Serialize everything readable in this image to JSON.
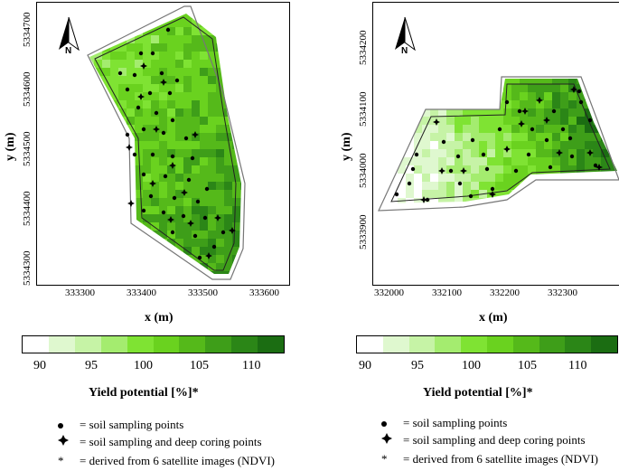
{
  "colors": {
    "scale": [
      "#ffffff",
      "#dff8cf",
      "#c6f3a6",
      "#a4ec6f",
      "#7fe333",
      "#6ad21f",
      "#55b91a",
      "#3e9e19",
      "#2b8617",
      "#1b6d12"
    ],
    "outline": "#777777"
  },
  "north_label": "N",
  "map_left": {
    "x_ticks": [
      "333300",
      "333400",
      "333500",
      "333600"
    ],
    "y_ticks": [
      "5334300",
      "5334400",
      "5334500",
      "5334600",
      "5334700"
    ],
    "xlabel": "x (m)",
    "ylabel": "y (m)",
    "colorbar_ticks": [
      "90",
      "95",
      "100",
      "105",
      "110"
    ],
    "colorbar_title": "Yield potential [%]*"
  },
  "map_right": {
    "x_ticks": [
      "332000",
      "332100",
      "332200",
      "332300"
    ],
    "y_ticks": [
      "5333900",
      "5334000",
      "5334100",
      "5334200"
    ],
    "xlabel": "x (m)",
    "ylabel": "y (m)",
    "colorbar_ticks": [
      "90",
      "95",
      "100",
      "105",
      "110"
    ],
    "colorbar_title": "Yield potential [%]*"
  },
  "legend": {
    "soil_points": "= soil sampling points",
    "deep_coring": "= soil sampling and deep coring points",
    "ndvi_note": "=  derived from 6 satellite images (NDVI)",
    "ndvi_symbol": "*"
  }
}
